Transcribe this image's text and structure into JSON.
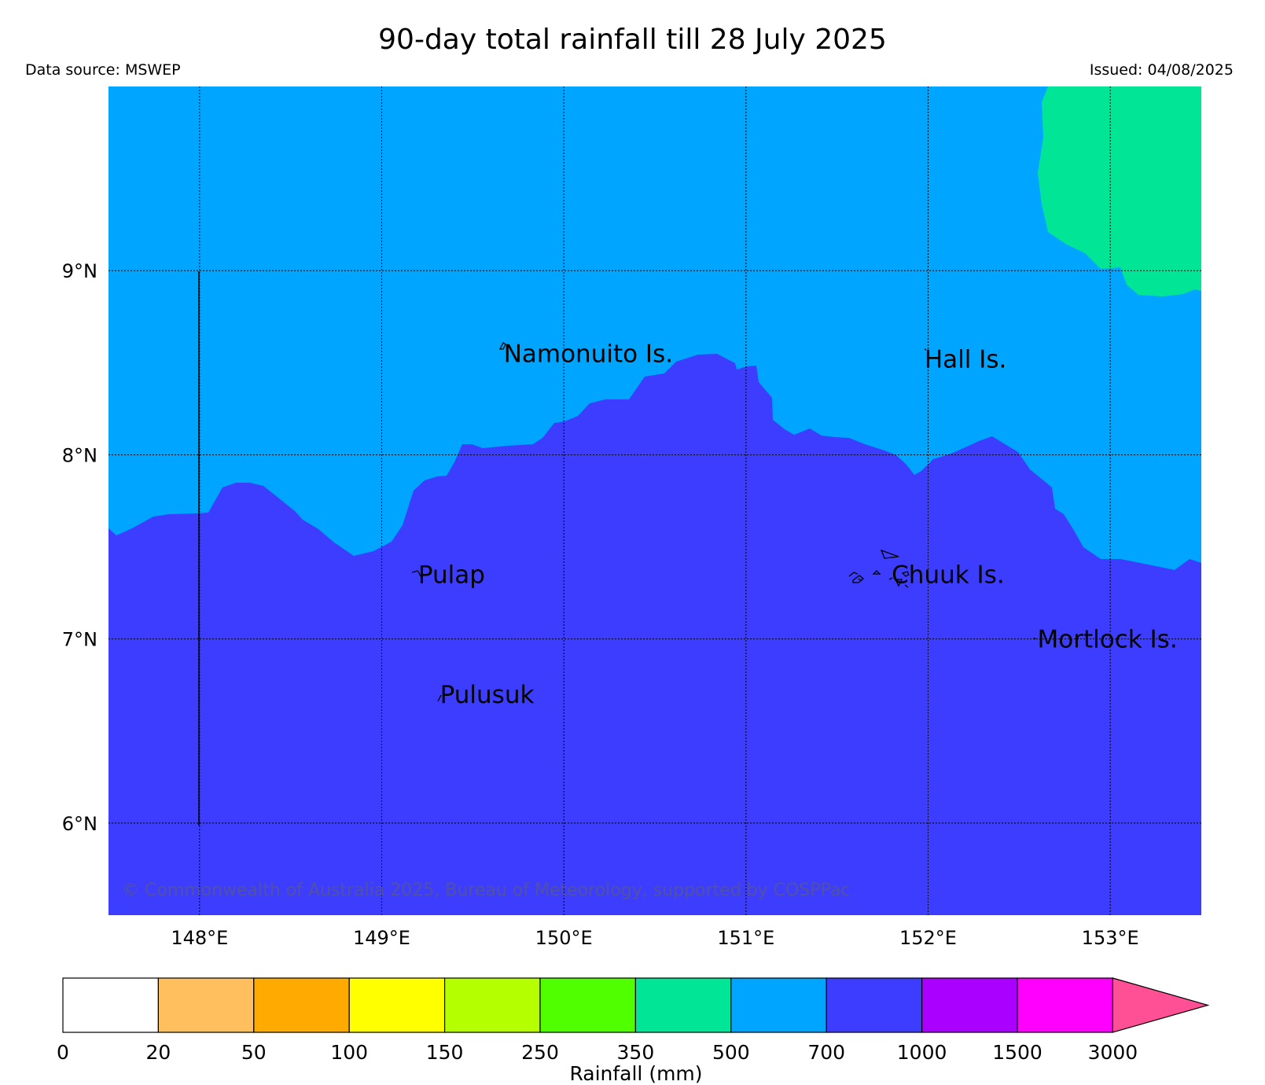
{
  "header": {
    "title": "90-day total rainfall till 28 July 2025",
    "data_source": "Data source: MSWEP",
    "issued": "Issued: 04/08/2025"
  },
  "map": {
    "lon_range": [
      147.5,
      153.5
    ],
    "lat_range": [
      5.5,
      10.0
    ],
    "lon_ticks": [
      {
        "value": 148,
        "label": "148°E"
      },
      {
        "value": 149,
        "label": "149°E"
      },
      {
        "value": 150,
        "label": "150°E"
      },
      {
        "value": 151,
        "label": "151°E"
      },
      {
        "value": 152,
        "label": "152°E"
      },
      {
        "value": 153,
        "label": "153°E"
      }
    ],
    "lat_ticks": [
      {
        "value": 9,
        "label": "9°N"
      },
      {
        "value": 8,
        "label": "8°N"
      },
      {
        "value": 7,
        "label": "7°N"
      },
      {
        "value": 6,
        "label": "6°N"
      }
    ],
    "grid": "dotted",
    "zones": {
      "700-1000": "#3d3dff",
      "500-700": "#00a5ff",
      "350-500": "#00e696"
    },
    "places": [
      {
        "name": "Namonuito Is.",
        "lon": 149.67,
        "lat": 8.55
      },
      {
        "name": "Hall Is.",
        "lon": 151.98,
        "lat": 8.52
      },
      {
        "name": "Pulap",
        "lon": 149.2,
        "lat": 7.35
      },
      {
        "name": "Chuuk Is.",
        "lon": 151.8,
        "lat": 7.35
      },
      {
        "name": "Mortlock Is.",
        "lon": 152.6,
        "lat": 7.0
      },
      {
        "name": "Pulusuk",
        "lon": 149.32,
        "lat": 6.7
      }
    ],
    "copyright": "© Commonwealth of Australia 2025, Bureau of Meteorology, supported by COSPPac"
  },
  "colorbar": {
    "label": "Rainfall (mm)",
    "ticks": [
      "0",
      "20",
      "50",
      "100",
      "150",
      "250",
      "350",
      "500",
      "700",
      "1000",
      "1500",
      "3000"
    ],
    "colors": [
      "#ffffff",
      "#ffbf5f",
      "#ffaa00",
      "#ffff00",
      "#b4ff00",
      "#50ff00",
      "#00e696",
      "#00a5ff",
      "#3d3dff",
      "#aa00ff",
      "#ff00ff"
    ],
    "extend_color": "#ff5096"
  }
}
